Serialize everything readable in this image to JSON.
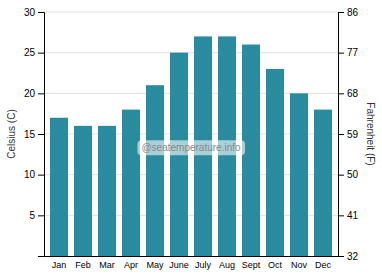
{
  "chart_data": {
    "type": "bar",
    "categories": [
      "Jan",
      "Feb",
      "Mar",
      "Apr",
      "May",
      "June",
      "July",
      "Aug",
      "Sept",
      "Oct",
      "Nov",
      "Dec"
    ],
    "values": [
      17,
      16,
      16,
      18,
      21,
      25,
      27,
      27,
      26,
      23,
      20,
      18
    ],
    "color": "#2a8a9e",
    "ylim": [
      0,
      30
    ],
    "yticks": [
      5,
      10,
      15,
      20,
      25,
      30
    ],
    "y2lim": [
      32,
      86
    ],
    "y2ticks": [
      32,
      41,
      50,
      59,
      68,
      77,
      86
    ],
    "ylabel": "Celsius (C)",
    "y2label": "Fahrenheit (F)",
    "annotations": [
      {
        "text": "@seatemperature.info"
      }
    ],
    "grid": true
  }
}
